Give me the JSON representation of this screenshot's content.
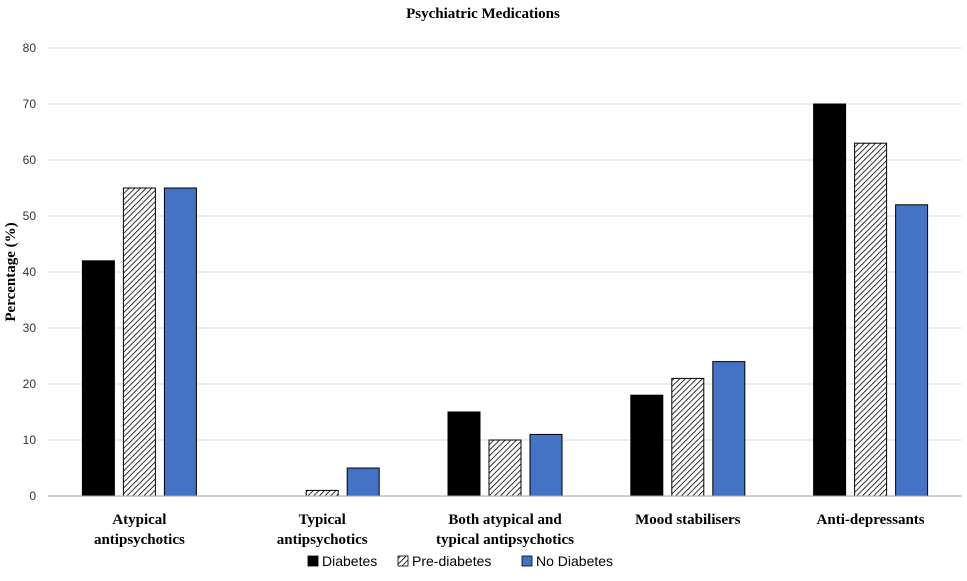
{
  "chart_data": {
    "type": "bar",
    "title": "Psychiatric Medications",
    "ylabel": "Percentage (%)",
    "xlabel": "",
    "ylim": [
      0,
      80
    ],
    "yticks": [
      0,
      10,
      20,
      30,
      40,
      50,
      60,
      70,
      80
    ],
    "grid": true,
    "legend_position": "bottom",
    "categories": [
      [
        "Atypical",
        "antipsychotics"
      ],
      [
        "Typical",
        "antipsychotics"
      ],
      [
        "Both atypical and",
        "typical antipsychotics"
      ],
      [
        "Mood stabilisers"
      ],
      [
        "Anti-depressants"
      ]
    ],
    "series": [
      {
        "name": "Diabetes",
        "values": [
          42,
          0,
          15,
          18,
          70
        ],
        "fill": "#000000",
        "pattern": "solid"
      },
      {
        "name": "Pre-diabetes",
        "values": [
          55,
          1,
          10,
          21,
          63
        ],
        "fill": "#ffffff",
        "pattern": "hatch"
      },
      {
        "name": "No Diabetes",
        "values": [
          55,
          5,
          11,
          24,
          52
        ],
        "fill": "#4472c4",
        "pattern": "solid"
      }
    ]
  }
}
